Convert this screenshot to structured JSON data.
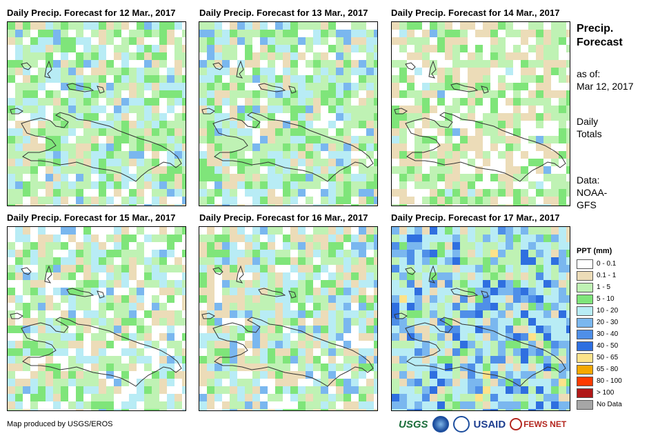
{
  "panels": [
    {
      "title": "Daily Precip. Forecast for 12 Mar., 2017",
      "seed": 12,
      "profile": "p1"
    },
    {
      "title": "Daily Precip. Forecast for 13 Mar., 2017",
      "seed": 13,
      "profile": "p2"
    },
    {
      "title": "Daily Precip. Forecast for 14 Mar., 2017",
      "seed": 14,
      "profile": "p3"
    },
    {
      "title": "Daily Precip. Forecast for 15 Mar., 2017",
      "seed": 15,
      "profile": "p4"
    },
    {
      "title": "Daily Precip. Forecast for 16 Mar., 2017",
      "seed": 16,
      "profile": "p5"
    },
    {
      "title": "Daily Precip. Forecast for 17 Mar., 2017",
      "seed": 17,
      "profile": "p6"
    }
  ],
  "side": {
    "title_line1": "Precip.",
    "title_line2": "Forecast",
    "asof_label": "as of:",
    "asof_date": "Mar 12, 2017",
    "totals_line1": "Daily",
    "totals_line2": "Totals",
    "data_label": "Data:",
    "data_line1": "NOAA-",
    "data_line2": "GFS"
  },
  "legend": {
    "title": "PPT (mm)",
    "items": [
      {
        "label": "0 - 0.1",
        "color": "#ffffff"
      },
      {
        "label": "0.1 - 1",
        "color": "#ecdcb8"
      },
      {
        "label": "1 - 5",
        "color": "#bff2b4"
      },
      {
        "label": "5 - 10",
        "color": "#7fe57a"
      },
      {
        "label": "10 - 20",
        "color": "#b8ecf5"
      },
      {
        "label": "20 - 30",
        "color": "#7ab7ef"
      },
      {
        "label": "30 - 40",
        "color": "#4f8fe8"
      },
      {
        "label": "40 - 50",
        "color": "#2f6fe0"
      },
      {
        "label": "50 - 65",
        "color": "#fde38a"
      },
      {
        "label": "65 - 80",
        "color": "#f5a800"
      },
      {
        "label": "80 - 100",
        "color": "#ff3b00"
      },
      {
        "label": "> 100",
        "color": "#b01818"
      },
      {
        "label": "No Data",
        "color": "#a6a6a6"
      }
    ]
  },
  "credit": "Map produced by USGS/EROS",
  "logos": {
    "usgs": "USGS",
    "usaid": "USAID",
    "fewsnet": "FEWS NET"
  }
}
